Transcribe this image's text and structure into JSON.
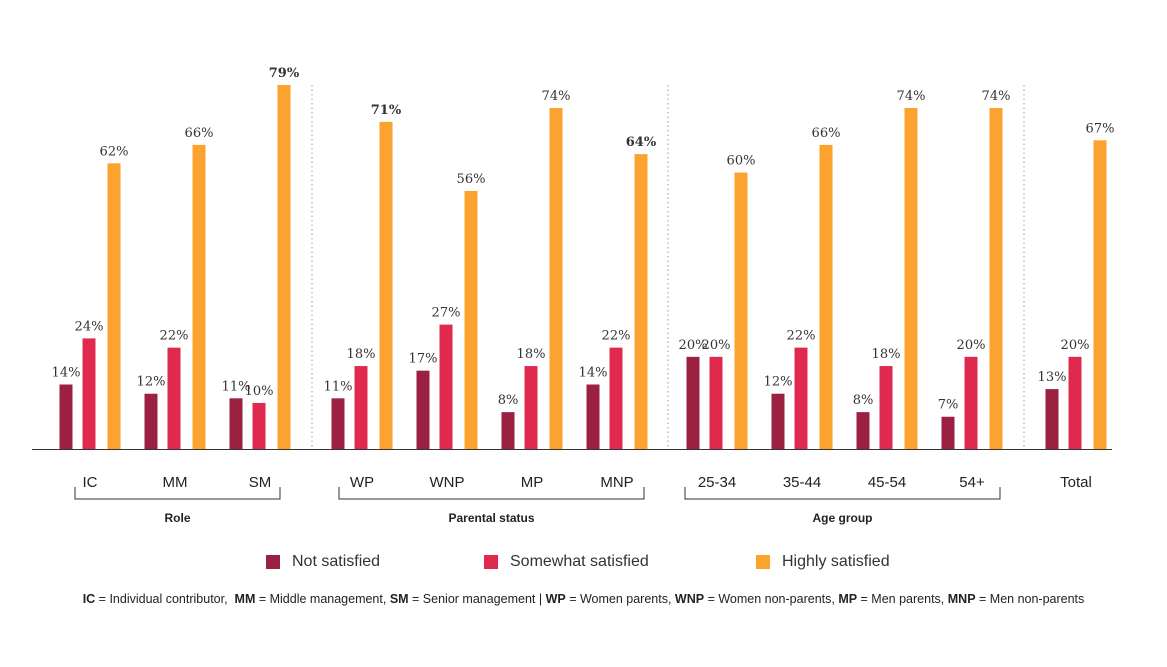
{
  "chart_data": {
    "type": "bar",
    "series": [
      {
        "name": "Not satisfied",
        "color": "#9b2042"
      },
      {
        "name": "Somewhat satisfied",
        "color": "#e0294f"
      },
      {
        "name": "Highly satisfied",
        "color": "#fca22e"
      }
    ],
    "groups": [
      {
        "label": "Role",
        "categories": [
          {
            "label": "IC",
            "values": [
              14,
              24,
              62
            ],
            "labels": [
              "14%",
              "24%",
              "62%"
            ],
            "bold": [
              false,
              false,
              false
            ]
          },
          {
            "label": "MM",
            "values": [
              12,
              22,
              66
            ],
            "labels": [
              "12%",
              "22%",
              "66%"
            ],
            "bold": [
              false,
              false,
              false
            ]
          },
          {
            "label": "SM",
            "values": [
              11,
              10,
              79
            ],
            "labels": [
              "11%",
              "10%",
              "79%"
            ],
            "bold": [
              false,
              false,
              true
            ]
          }
        ]
      },
      {
        "label": "Parental status",
        "categories": [
          {
            "label": "WP",
            "values": [
              11,
              18,
              71
            ],
            "labels": [
              "11%",
              "18%",
              "71%"
            ],
            "bold": [
              false,
              false,
              true
            ]
          },
          {
            "label": "WNP",
            "values": [
              17,
              27,
              56
            ],
            "labels": [
              "17%",
              "27%",
              "56%"
            ],
            "bold": [
              false,
              false,
              false
            ]
          },
          {
            "label": "MP",
            "values": [
              8,
              18,
              74
            ],
            "labels": [
              "8%",
              "18%",
              "74%"
            ],
            "bold": [
              false,
              false,
              false
            ]
          },
          {
            "label": "MNP",
            "values": [
              14,
              22,
              64
            ],
            "labels": [
              "14%",
              "22%",
              "64%"
            ],
            "bold": [
              false,
              false,
              true
            ]
          }
        ]
      },
      {
        "label": "Age group",
        "categories": [
          {
            "label": "25-34",
            "values": [
              20,
              20,
              60
            ],
            "labels": [
              "20%",
              "20%",
              "60%"
            ],
            "bold": [
              false,
              false,
              false
            ]
          },
          {
            "label": "35-44",
            "values": [
              12,
              22,
              66
            ],
            "labels": [
              "12%",
              "22%",
              "66%"
            ],
            "bold": [
              false,
              false,
              false
            ]
          },
          {
            "label": "45-54",
            "values": [
              8,
              18,
              74
            ],
            "labels": [
              "8%",
              "18%",
              "74%"
            ],
            "bold": [
              false,
              false,
              false
            ]
          },
          {
            "label": "54+",
            "values": [
              7,
              20,
              74
            ],
            "labels": [
              "7%",
              "20%",
              "74%"
            ],
            "bold": [
              false,
              false,
              false
            ]
          }
        ]
      },
      {
        "label": "",
        "categories": [
          {
            "label": "Total",
            "values": [
              13,
              20,
              67
            ],
            "labels": [
              "13%",
              "20%",
              "67%"
            ],
            "bold": [
              false,
              false,
              false
            ]
          }
        ]
      }
    ],
    "ylim": [
      0,
      80
    ],
    "grid": false,
    "legend_position": "bottom"
  },
  "footnote": [
    {
      "abbr": "IC",
      "text": " = Individual contributor,  "
    },
    {
      "abbr": "MM",
      "text": " = Middle management, "
    },
    {
      "abbr": "SM",
      "text": " = Senior management | "
    },
    {
      "abbr": "WP",
      "text": " = Women parents, "
    },
    {
      "abbr": "WNP",
      "text": " = Women non-parents, "
    },
    {
      "abbr": "MP",
      "text": " = Men parents, "
    },
    {
      "abbr": "MNP",
      "text": " = Men non-parents"
    }
  ]
}
